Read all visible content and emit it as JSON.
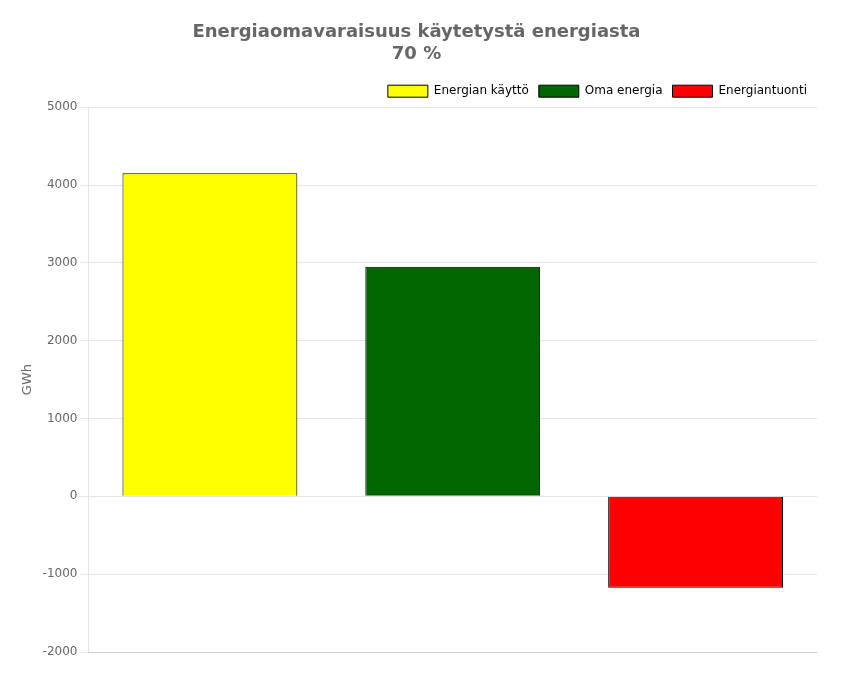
{
  "chart_data": {
    "type": "bar",
    "title": "Energiaomavaraisuus käytetystä energiasta\n70 %",
    "categories": [
      "Energian käyttö",
      "Oma energia",
      "Energiantuonti"
    ],
    "values": [
      4150,
      2950,
      -1175
    ],
    "colors": [
      "#ffff00",
      "#006600",
      "#ff0000"
    ],
    "ylabel": "GWh",
    "ylim": [
      -2000,
      5000
    ],
    "yticks": [
      -2000,
      -1000,
      0,
      1000,
      2000,
      3000,
      4000,
      5000
    ],
    "grid": true,
    "legend": "upper right",
    "tick_labels": "y"
  }
}
